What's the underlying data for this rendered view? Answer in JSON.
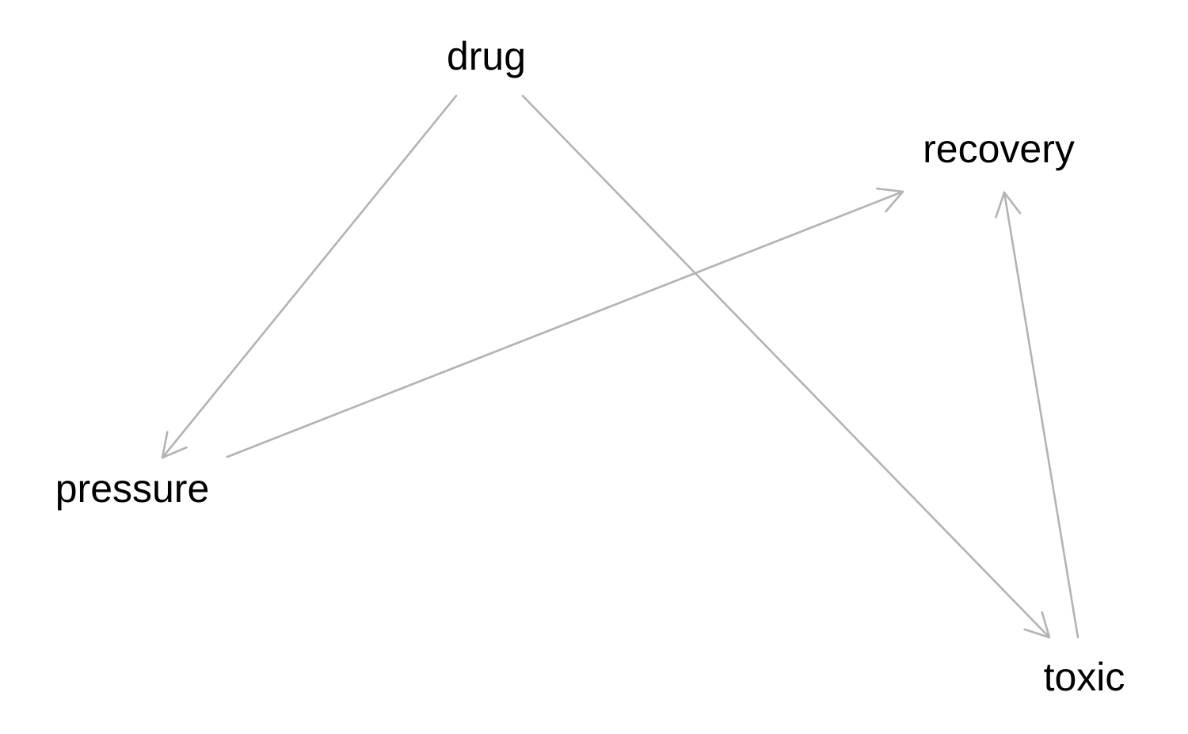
{
  "diagram": {
    "edge_color": "#B3B3B3",
    "text_color": "#000000",
    "nodes": [
      {
        "id": "drug",
        "label": "drug"
      },
      {
        "id": "recovery",
        "label": "recovery"
      },
      {
        "id": "pressure",
        "label": "pressure"
      },
      {
        "id": "toxic",
        "label": "toxic"
      }
    ],
    "edges": [
      {
        "from": "drug",
        "to": "pressure"
      },
      {
        "from": "drug",
        "to": "toxic"
      },
      {
        "from": "pressure",
        "to": "recovery"
      },
      {
        "from": "toxic",
        "to": "recovery"
      }
    ]
  }
}
